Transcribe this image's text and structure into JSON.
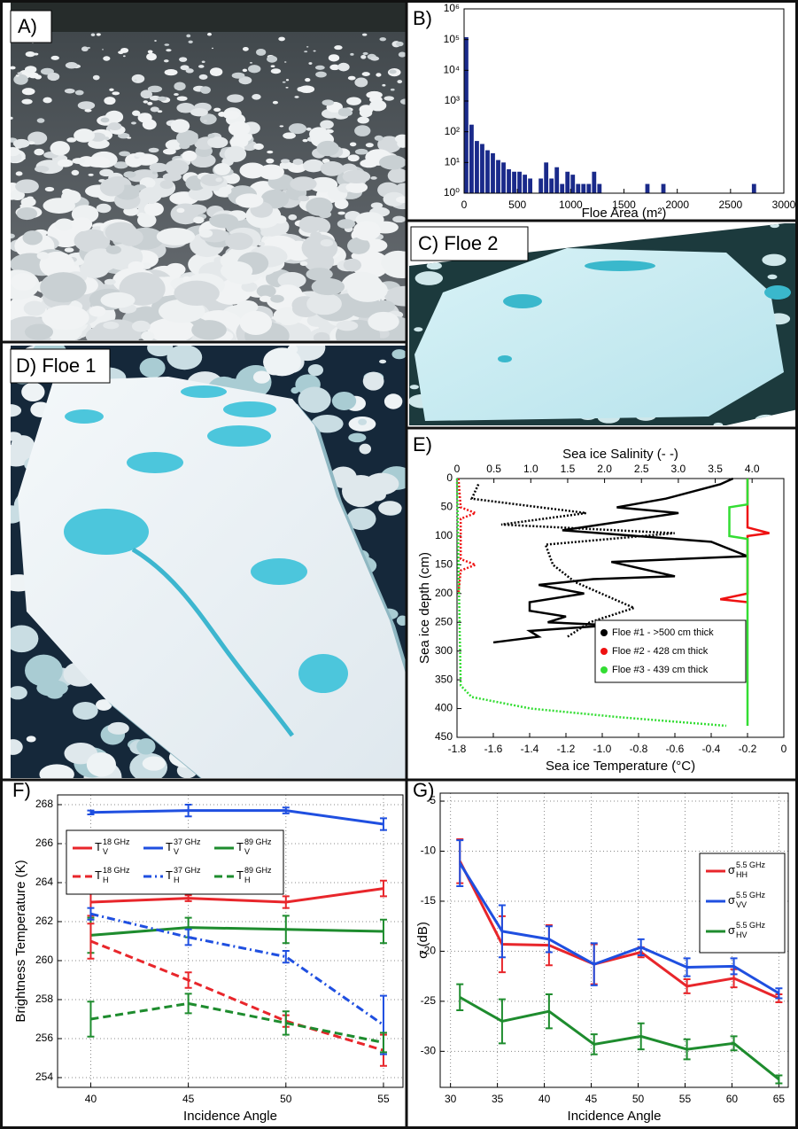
{
  "photo_labels": [
    "A)",
    "C) Floe 2",
    "D) Floe 1"
  ],
  "chart_data": [
    {
      "type": "histogram",
      "label": "B)",
      "xlabel": "Floe Area (m²)",
      "color": "#1a2a8a",
      "bins": [
        0,
        50,
        100,
        150,
        200,
        250,
        300,
        350,
        400,
        450,
        500,
        550,
        600,
        650,
        700,
        750,
        800,
        850,
        900,
        950,
        1000,
        1050,
        1100,
        1150,
        1200,
        1250,
        1300,
        1350,
        1400,
        1450,
        1500,
        1550,
        1600,
        1650,
        1700,
        1750,
        1800,
        1850,
        1900,
        1950,
        2000,
        2050,
        2100,
        2150,
        2200,
        2250,
        2300,
        2350,
        2400,
        2450,
        2500,
        2550,
        2600,
        2650,
        2700,
        2750
      ],
      "counts": [
        120000,
        170,
        50,
        40,
        25,
        20,
        12,
        10,
        6,
        5,
        5,
        4,
        3,
        1,
        3,
        10,
        3,
        7,
        2,
        5,
        4,
        2,
        2,
        2,
        5,
        2,
        0,
        0,
        0,
        0,
        0,
        0,
        0,
        0,
        2,
        0,
        0,
        2,
        0,
        0,
        0,
        0,
        0,
        0,
        0,
        0,
        0,
        0,
        0,
        0,
        0,
        0,
        0,
        0,
        2
      ],
      "xlim": [
        0,
        3000
      ],
      "xticks": [
        0,
        500,
        1000,
        1500,
        2000,
        2500,
        3000
      ],
      "yscale": "log",
      "ylim": [
        1,
        1000000
      ],
      "yticks": [
        {
          "value": 1,
          "label": "10⁰"
        },
        {
          "value": 10,
          "label": "10¹"
        },
        {
          "value": 100,
          "label": "10²"
        },
        {
          "value": 1000,
          "label": "10³"
        },
        {
          "value": 10000,
          "label": "10⁴"
        },
        {
          "value": 100000,
          "label": "10⁵"
        },
        {
          "value": 1000000,
          "label": "10⁶"
        }
      ]
    },
    {
      "type": "profile",
      "label": "E)",
      "xlabel": "Sea ice Temperature (°C)",
      "x2label": "Sea ice Salinity (- -)",
      "ylabel": "Sea ice depth (cm)",
      "xlim": [
        -1.8,
        0
      ],
      "xticks": [
        -1.8,
        -1.6,
        -1.4,
        -1.2,
        {
          "value": -1,
          "label": "-1.0"
        },
        -0.8,
        -0.6,
        -0.4,
        -0.2,
        0
      ],
      "x2lim": [
        0,
        4.43
      ],
      "x2ticks": [
        0,
        0.5,
        {
          "value": 1,
          "label": "1.0"
        },
        1.5,
        {
          "value": 2,
          "label": "2.0"
        },
        2.5,
        {
          "value": 3,
          "label": "3.0"
        },
        3.5,
        {
          "value": 4,
          "label": "4.0"
        }
      ],
      "ylim": [
        0,
        450
      ],
      "invert_y": true,
      "yticks": [
        0,
        50,
        100,
        150,
        200,
        250,
        300,
        350,
        400,
        450
      ],
      "series": [
        {
          "name": "Floe #1 - >500 cm thick",
          "color": "#000000",
          "temperature_depth": [
            0,
            10,
            35,
            50,
            60,
            90,
            110,
            135,
            145,
            170,
            175,
            185,
            200,
            215,
            230,
            240,
            250,
            255,
            265,
            275,
            285
          ],
          "temperature": [
            -0.28,
            -0.35,
            -0.65,
            -0.92,
            -0.58,
            -1.22,
            -0.4,
            -0.2,
            -0.95,
            -0.6,
            -1.05,
            -1.35,
            -1.1,
            -1.4,
            -1.4,
            -1.2,
            -1.3,
            -0.95,
            -1.4,
            -1.35,
            -1.6
          ],
          "salinity_depth": [
            10,
            35,
            60,
            80,
            95,
            115,
            150,
            180,
            225,
            250,
            275
          ],
          "salinity": [
            0.29,
            0.2,
            1.75,
            0.6,
            2.95,
            1.2,
            1.3,
            1.6,
            2.4,
            1.8,
            1.5
          ]
        },
        {
          "name": "Floe #2 - 428 cm thick",
          "color": "#ee1111",
          "temperature_depth": [
            0,
            85,
            95,
            100,
            200,
            210,
            215
          ],
          "temperature": [
            -0.2,
            -0.2,
            -0.08,
            -0.2,
            -0.2,
            -0.35,
            -0.2
          ],
          "salinity_depth": [
            0,
            50,
            60,
            70,
            140,
            150,
            160,
            200
          ],
          "salinity": [
            0.02,
            0.05,
            0.25,
            0.05,
            0.05,
            0.25,
            0.05,
            0.02
          ]
        },
        {
          "name": "Floe #3 - 439 cm thick",
          "color": "#33dd33",
          "temperature_depth": [
            0,
            45,
            50,
            100,
            105,
            430
          ],
          "temperature": [
            -0.2,
            -0.2,
            -0.3,
            -0.3,
            -0.2,
            -0.2
          ],
          "salinity_depth": [
            0,
            360,
            380,
            400,
            415,
            430
          ],
          "salinity": [
            0,
            0.05,
            0.2,
            1.0,
            2.2,
            3.65
          ]
        }
      ]
    },
    {
      "type": "line",
      "label": "F)",
      "xlabel": "Incidence Angle",
      "ylabel": "Brightness Temperature (K)",
      "grid": true,
      "x": [
        40,
        45,
        50,
        55
      ],
      "xlim": [
        38.3,
        56
      ],
      "xticks": [
        40,
        45,
        50,
        55
      ],
      "ylim": [
        253.5,
        268.5
      ],
      "yticks": [
        254,
        256,
        258,
        260,
        262,
        264,
        266,
        268
      ],
      "series": [
        {
          "name": "T",
          "sub": "V",
          "sup": "18 GHz",
          "color": "#e8262b",
          "linestyle": "solid",
          "values": [
            263.0,
            263.2,
            263.0,
            263.7
          ],
          "errors": [
            0.7,
            0.15,
            0.3,
            0.4
          ]
        },
        {
          "name": "T",
          "sub": "V",
          "sup": "37 GHz",
          "color": "#1f4fe0",
          "linestyle": "solid",
          "values": [
            267.6,
            267.7,
            267.7,
            267.0
          ],
          "errors": [
            0.1,
            0.3,
            0.15,
            0.3
          ]
        },
        {
          "name": "T",
          "sub": "V",
          "sup": "89 GHz",
          "color": "#1e8c2e",
          "linestyle": "solid",
          "values": [
            261.3,
            261.7,
            261.6,
            261.5
          ],
          "errors": [
            0.9,
            0.5,
            0.7,
            0.6
          ]
        },
        {
          "name": "T",
          "sub": "H",
          "sup": "18 GHz",
          "color": "#e8262b",
          "linestyle": "dashed",
          "values": [
            261.0,
            259.0,
            256.9,
            255.4
          ],
          "errors": [
            0.9,
            0.4,
            0.3,
            0.8
          ]
        },
        {
          "name": "T",
          "sub": "H",
          "sup": "37 GHz",
          "color": "#1f4fe0",
          "linestyle": "dashdot",
          "values": [
            262.4,
            261.2,
            260.2,
            256.7
          ],
          "errors": [
            0.3,
            0.4,
            0.3,
            1.5
          ]
        },
        {
          "name": "T",
          "sub": "H",
          "sup": "89 GHz",
          "color": "#1e8c2e",
          "linestyle": "dashed",
          "values": [
            257.0,
            257.8,
            256.8,
            255.8
          ],
          "errors": [
            0.9,
            0.5,
            0.6,
            0.5
          ]
        }
      ]
    },
    {
      "type": "line",
      "label": "G)",
      "xlabel": "Incidence Angle",
      "ylabel": "σ (dB)",
      "grid": true,
      "x": [
        31,
        35.5,
        40.5,
        45.3,
        50.3,
        55.2,
        60.2,
        65
      ],
      "xlim": [
        28.9,
        66
      ],
      "xticks": [
        30,
        35,
        40,
        45,
        50,
        55,
        60,
        65
      ],
      "ylim": [
        -33.6,
        -4.2
      ],
      "yticks": [
        -30,
        -25,
        -20,
        -15,
        -10,
        -5
      ],
      "series": [
        {
          "name": "σ",
          "sub": "HH",
          "sup": "5.5 GHz",
          "color": "#e8262b",
          "linestyle": "solid",
          "values": [
            -11,
            -19.3,
            -19.4,
            -21.3,
            -20.1,
            -23.5,
            -22.7,
            -24.7
          ],
          "errors": [
            2.2,
            2.8,
            2,
            2,
            0.5,
            0.7,
            0.9,
            0.4
          ]
        },
        {
          "name": "σ",
          "sub": "VV",
          "sup": "5.5 GHz",
          "color": "#1f4fe0",
          "linestyle": "solid",
          "values": [
            -11.2,
            -18.0,
            -18.8,
            -21.3,
            -19.6,
            -21.6,
            -21.5,
            -24.2
          ],
          "errors": [
            2.3,
            2.6,
            1.3,
            2.1,
            0.8,
            0.9,
            0.8,
            0.5
          ]
        },
        {
          "name": "σ",
          "sub": "HV",
          "sup": "5.5 GHz",
          "color": "#1e8c2e",
          "linestyle": "solid",
          "values": [
            -24.6,
            -27.0,
            -26.0,
            -29.3,
            -28.5,
            -29.8,
            -29.2,
            -32.8
          ],
          "errors": [
            1.3,
            2.2,
            1.7,
            1,
            1.3,
            1,
            0.7,
            0.4
          ]
        }
      ]
    }
  ]
}
